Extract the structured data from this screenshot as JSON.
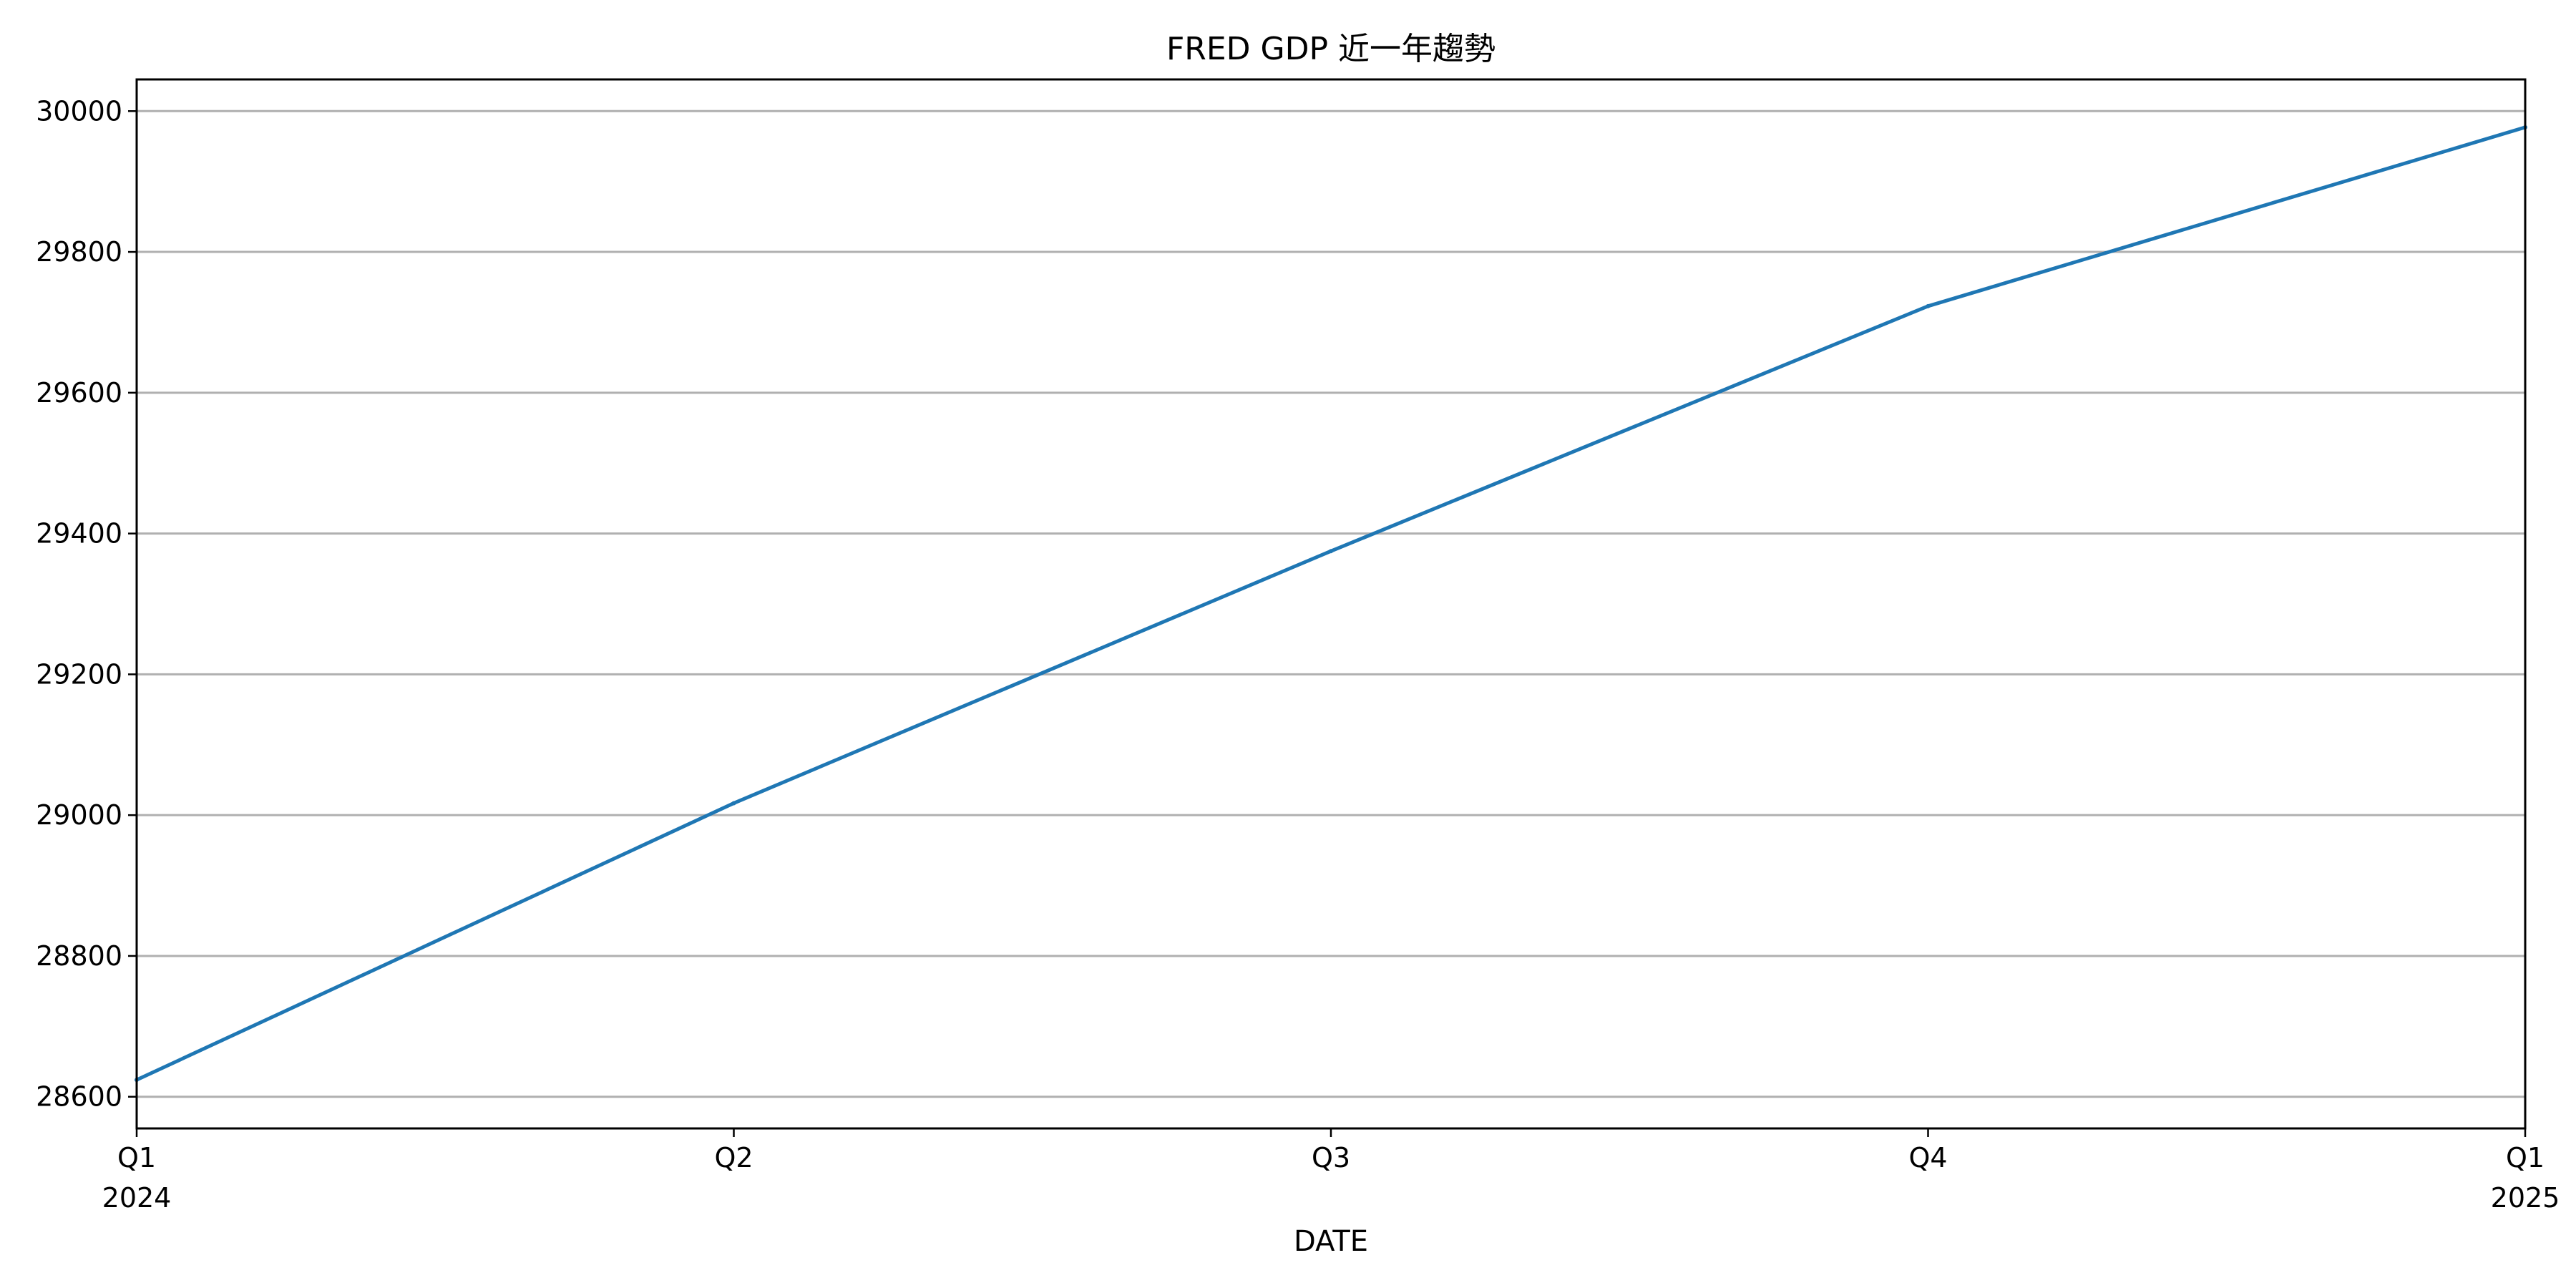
{
  "chart_data": {
    "type": "line",
    "title": "FRED GDP 近一年趨勢",
    "xlabel": "DATE",
    "ylabel": "",
    "x": [
      "2024-Q1",
      "2024-Q2",
      "2024-Q3",
      "2024-Q4",
      "2025-Q1"
    ],
    "x_tick_labels": [
      {
        "line1": "Q1",
        "line2": "2024"
      },
      {
        "line1": "Q2",
        "line2": ""
      },
      {
        "line1": "Q3",
        "line2": ""
      },
      {
        "line1": "Q4",
        "line2": ""
      },
      {
        "line1": "Q1",
        "line2": "2025"
      }
    ],
    "series": [
      {
        "values": [
          28624,
          29017,
          29375,
          29723,
          29977
        ],
        "color": "#1f77b4"
      }
    ],
    "ylim": [
      28555,
      30045
    ],
    "y_ticks": [
      28600,
      28800,
      29000,
      29200,
      29400,
      29600,
      29800,
      30000
    ],
    "grid": "horizontal",
    "legend": "none"
  }
}
